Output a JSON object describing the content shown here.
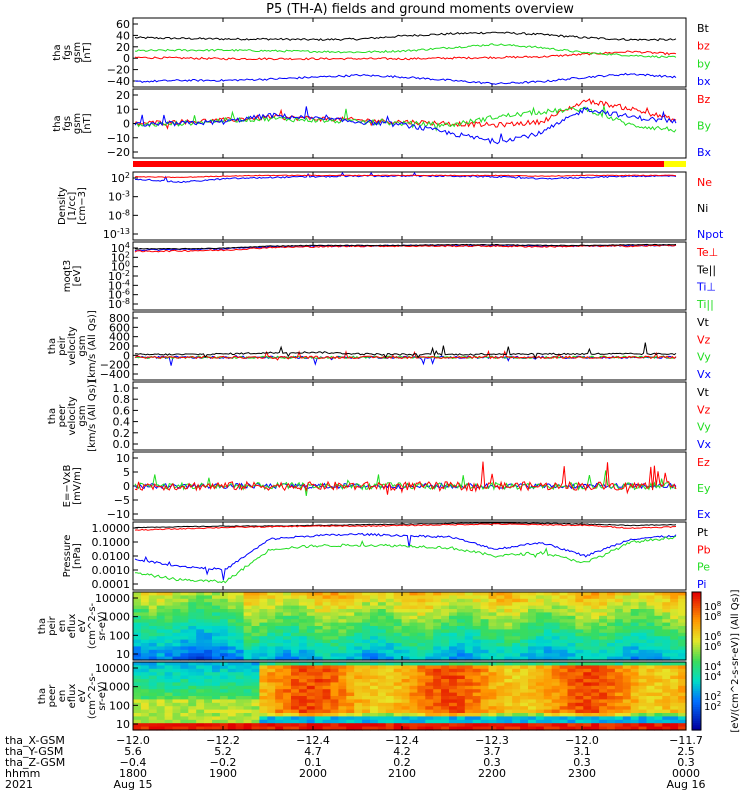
{
  "title": "P5 (TH-A) fields and ground moments overview",
  "colors": {
    "black": "#000000",
    "red": "#ff0000",
    "green": "#22dd22",
    "blue": "#0000ff",
    "yellow": "#ffff00"
  },
  "chart_data": [
    {
      "type": "line",
      "panel": "fgs_gsm",
      "ylabel": [
        "tha",
        "fgs",
        "gsm",
        "[nT]"
      ],
      "yticks": [
        "60",
        "40",
        "20",
        "0",
        "−20",
        "−40"
      ],
      "ylim": [
        -40,
        65
      ],
      "series": [
        {
          "name": "Bt",
          "color": "black",
          "values": [
            35,
            34,
            33,
            33,
            32,
            33,
            38,
            41,
            43,
            40,
            35,
            32,
            32
          ]
        },
        {
          "name": "bz",
          "color": "red",
          "values": [
            5,
            4,
            3,
            3,
            3,
            3,
            3,
            4,
            5,
            6,
            10,
            14,
            10
          ]
        },
        {
          "name": "by",
          "color": "green",
          "values": [
            15,
            16,
            16,
            15,
            14,
            13,
            15,
            20,
            25,
            20,
            12,
            8,
            5
          ]
        },
        {
          "name": "bx",
          "color": "blue",
          "values": [
            -32,
            -30,
            -30,
            -28,
            -25,
            -22,
            -25,
            -30,
            -35,
            -32,
            -25,
            -20,
            -25
          ]
        }
      ]
    },
    {
      "type": "line",
      "panel": "fgs_gsm_zoom",
      "ylabel": [
        "tha",
        "fgs",
        "gsm",
        "[nT]"
      ],
      "yticks": [
        "20",
        "10",
        "0",
        "−10",
        "−20"
      ],
      "ylim": [
        -20,
        22
      ],
      "series": [
        {
          "name": "Bz",
          "color": "red",
          "values": [
            1,
            2,
            3,
            5,
            4,
            3,
            2,
            1,
            0,
            2,
            15,
            10,
            3
          ]
        },
        {
          "name": "By",
          "color": "green",
          "values": [
            0,
            1,
            3,
            4,
            3,
            2,
            1,
            0,
            5,
            8,
            10,
            0,
            -3
          ]
        },
        {
          "name": "Bx",
          "color": "blue",
          "values": [
            0,
            1,
            2,
            6,
            4,
            2,
            0,
            -5,
            -10,
            -5,
            10,
            5,
            2
          ]
        }
      ]
    },
    {
      "type": "line",
      "panel": "density",
      "ylabel": [
        "Density",
        "[1/cc]",
        "[cm−3]"
      ],
      "yticks": [
        "10^2",
        "10^-3",
        "10^-8",
        "10^-13"
      ],
      "ylog": true,
      "series": [
        {
          "name": "Ne",
          "color": "red"
        },
        {
          "name": "Ni",
          "color": "black"
        },
        {
          "name": "Npot",
          "color": "blue"
        }
      ]
    },
    {
      "type": "line",
      "panel": "temperature",
      "ylabel": [
        "moqt3",
        "[eV]"
      ],
      "yticks": [
        "10^4",
        "10^2",
        "10^0",
        "10^-2",
        "10^-4",
        "10^-6",
        "10^-8"
      ],
      "ylog": true,
      "series": [
        {
          "name": "Te⊥",
          "color": "red"
        },
        {
          "name": "Te||",
          "color": "black"
        },
        {
          "name": "Ti⊥",
          "color": "blue"
        },
        {
          "name": "Ti||",
          "color": "green"
        }
      ]
    },
    {
      "type": "line",
      "panel": "peir_velocity",
      "ylabel": [
        "tha",
        "peir",
        "velocity",
        "gsm",
        "[km/s (All Qs)]"
      ],
      "yticks": [
        "800",
        "600",
        "400",
        "200",
        "0",
        "−200",
        "−400"
      ],
      "ylim": [
        -400,
        800
      ],
      "series": [
        {
          "name": "Vt",
          "color": "black"
        },
        {
          "name": "Vz",
          "color": "red"
        },
        {
          "name": "Vy",
          "color": "green"
        },
        {
          "name": "Vx",
          "color": "blue"
        }
      ]
    },
    {
      "type": "line",
      "panel": "peer_velocity",
      "ylabel": [
        "tha",
        "peer",
        "velocity",
        "gsm",
        "[km/s (All Qs)]"
      ],
      "yticks": [
        "1.0",
        "0.8",
        "0.6",
        "0.4",
        "0.2",
        "0.0"
      ],
      "ylim": [
        0,
        1
      ],
      "series": [
        {
          "name": "Vt",
          "color": "black"
        },
        {
          "name": "Vz",
          "color": "red"
        },
        {
          "name": "Vy",
          "color": "green"
        },
        {
          "name": "Vx",
          "color": "blue"
        }
      ]
    },
    {
      "type": "line",
      "panel": "efield",
      "ylabel": [
        "E=−VxB",
        "[mV/m]"
      ],
      "yticks": [
        "10",
        "5",
        "0",
        "−5",
        "−10"
      ],
      "ylim": [
        -10,
        10
      ],
      "series": [
        {
          "name": "Ez",
          "color": "red"
        },
        {
          "name": "Ey",
          "color": "green"
        },
        {
          "name": "Ex",
          "color": "blue"
        }
      ]
    },
    {
      "type": "line",
      "panel": "pressure",
      "ylabel": [
        "Pressure",
        "[nPa]"
      ],
      "yticks": [
        "1.0000",
        "0.1000",
        "0.0100",
        "0.0010",
        "0.0001"
      ],
      "ylog": true,
      "series": [
        {
          "name": "Pt",
          "color": "black"
        },
        {
          "name": "Pb",
          "color": "red"
        },
        {
          "name": "Pe",
          "color": "green"
        },
        {
          "name": "Pi",
          "color": "blue"
        }
      ]
    },
    {
      "type": "heatmap",
      "panel": "peir_spectrogram",
      "ylabel": [
        "tha",
        "peir",
        "en",
        "eflux",
        "eV",
        "(cm^2-s-",
        "sr-eV)"
      ],
      "yticks": [
        "10000",
        "1000",
        "100",
        "10"
      ]
    },
    {
      "type": "heatmap",
      "panel": "peer_spectrogram",
      "ylabel": [
        "tha",
        "peer",
        "en",
        "eflux",
        "eV",
        "(cm^2-s-",
        "sr-eV)"
      ],
      "yticks": [
        "10000",
        "1000",
        "100",
        "10"
      ]
    }
  ],
  "colorbar": {
    "label": "[eV/(cm^2-s-sr-eV)] (All Qs)]",
    "ticks": [
      "10^8",
      "10^6",
      "10^4",
      "10^2"
    ]
  },
  "xaxis": {
    "rows": [
      {
        "label": "tha_X-GSM",
        "values": [
          "−12.0",
          "−12.2",
          "−12.4",
          "−12.4",
          "−12.3",
          "−12.0",
          "−11.7"
        ]
      },
      {
        "label": "tha_Y-GSM",
        "values": [
          "5.6",
          "5.2",
          "4.7",
          "4.2",
          "3.7",
          "3.1",
          "2.5"
        ]
      },
      {
        "label": "tha_Z-GSM",
        "values": [
          "−0.4",
          "−0.2",
          "0.1",
          "0.2",
          "0.3",
          "0.3",
          "0.3"
        ]
      },
      {
        "label": "hhmm",
        "values": [
          "1800",
          "1900",
          "2000",
          "2100",
          "2200",
          "2300",
          "0000"
        ]
      }
    ],
    "year": "2021",
    "date_start": "Aug 15",
    "date_end": "Aug 16"
  }
}
